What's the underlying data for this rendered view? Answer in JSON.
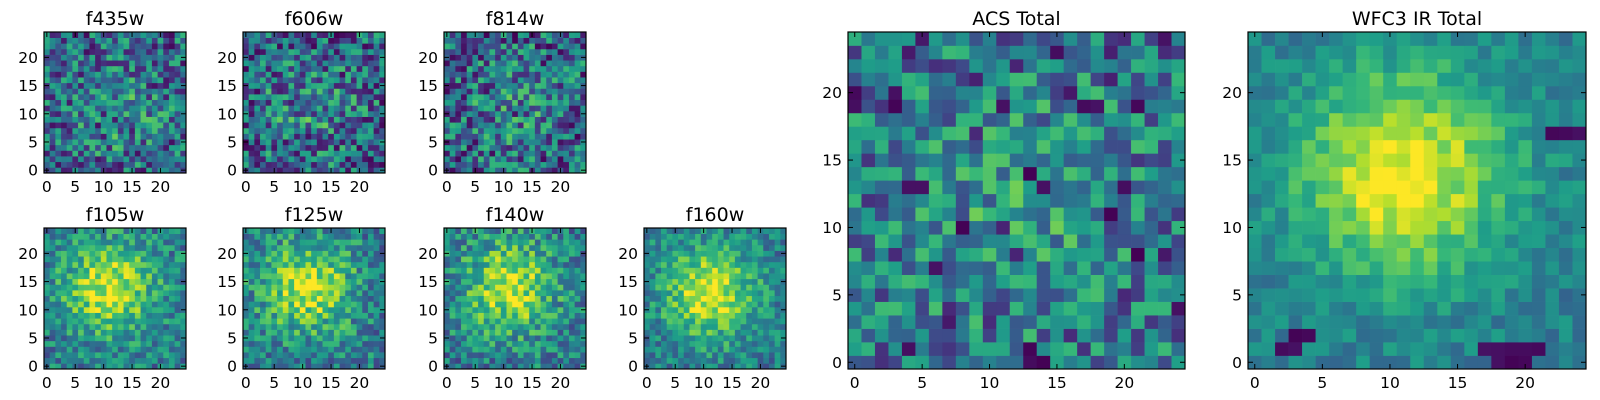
{
  "chart_data": [
    {
      "id": "f435w",
      "type": "heatmap",
      "title": "f435w",
      "grid_size": 25,
      "xticks": [
        0,
        5,
        10,
        15,
        20
      ],
      "yticks": [
        0,
        5,
        10,
        15,
        20
      ],
      "colormap": "viridis",
      "pattern": "noise",
      "seed": 11,
      "center": [
        13,
        10
      ],
      "peak": 0.62,
      "noise": 0.32,
      "dark_pixels": []
    },
    {
      "id": "f606w",
      "type": "heatmap",
      "title": "f606w",
      "grid_size": 25,
      "xticks": [
        0,
        5,
        10,
        15,
        20
      ],
      "yticks": [
        0,
        5,
        10,
        15,
        20
      ],
      "colormap": "viridis",
      "pattern": "noise",
      "seed": 23,
      "center": [
        11,
        11
      ],
      "peak": 0.6,
      "noise": 0.34,
      "dark_pixels": []
    },
    {
      "id": "f814w",
      "type": "heatmap",
      "title": "f814w",
      "grid_size": 25,
      "xticks": [
        0,
        5,
        10,
        15,
        20
      ],
      "yticks": [
        0,
        5,
        10,
        15,
        20
      ],
      "colormap": "viridis",
      "pattern": "noise",
      "seed": 37,
      "center": [
        12,
        12
      ],
      "peak": 0.6,
      "noise": 0.34,
      "dark_pixels": []
    },
    {
      "id": "f105w",
      "type": "heatmap",
      "title": "f105w",
      "grid_size": 25,
      "xticks": [
        0,
        5,
        10,
        15,
        20
      ],
      "yticks": [
        0,
        5,
        10,
        15,
        20
      ],
      "colormap": "viridis",
      "pattern": "blob",
      "seed": 41,
      "center": [
        11,
        14
      ],
      "peak": 0.95,
      "noise": 0.22,
      "dark_pixels": []
    },
    {
      "id": "f125w",
      "type": "heatmap",
      "title": "f125w",
      "grid_size": 25,
      "xticks": [
        0,
        5,
        10,
        15,
        20
      ],
      "yticks": [
        0,
        5,
        10,
        15,
        20
      ],
      "colormap": "viridis",
      "pattern": "blob",
      "seed": 53,
      "center": [
        11,
        14
      ],
      "peak": 0.92,
      "noise": 0.24,
      "dark_pixels": []
    },
    {
      "id": "f140w",
      "type": "heatmap",
      "title": "f140w",
      "grid_size": 25,
      "xticks": [
        0,
        5,
        10,
        15,
        20
      ],
      "yticks": [
        0,
        5,
        10,
        15,
        20
      ],
      "colormap": "viridis",
      "pattern": "blob",
      "seed": 67,
      "center": [
        11,
        14
      ],
      "peak": 0.92,
      "noise": 0.24,
      "dark_pixels": []
    },
    {
      "id": "f160w",
      "type": "heatmap",
      "title": "f160w",
      "grid_size": 25,
      "xticks": [
        0,
        5,
        10,
        15,
        20
      ],
      "yticks": [
        0,
        5,
        10,
        15,
        20
      ],
      "colormap": "viridis",
      "pattern": "blob",
      "seed": 79,
      "center": [
        11,
        13
      ],
      "peak": 0.96,
      "noise": 0.2,
      "dark_pixels": []
    },
    {
      "id": "acs",
      "type": "heatmap",
      "title": "ACS Total",
      "grid_size": 25,
      "xticks": [
        0,
        5,
        10,
        15,
        20
      ],
      "yticks": [
        0,
        5,
        10,
        15,
        20
      ],
      "colormap": "viridis",
      "pattern": "noise",
      "seed": 97,
      "center": [
        12,
        12
      ],
      "peak": 0.72,
      "noise": 0.28,
      "dark_pixels": [
        [
          0,
          20
        ],
        [
          23,
          24
        ],
        [
          3,
          19
        ],
        [
          14,
          13
        ],
        [
          20,
          13
        ],
        [
          18,
          19
        ],
        [
          17,
          19
        ],
        [
          13,
          14
        ],
        [
          8,
          10
        ],
        [
          6,
          7
        ],
        [
          21,
          8
        ],
        [
          13,
          1
        ],
        [
          14,
          0
        ],
        [
          4,
          13
        ],
        [
          5,
          13
        ],
        [
          21,
          19
        ],
        [
          11,
          19
        ],
        [
          19,
          11
        ]
      ]
    },
    {
      "id": "wfc3",
      "type": "heatmap",
      "title": "WFC3 IR Total",
      "grid_size": 25,
      "xticks": [
        0,
        5,
        10,
        15,
        20
      ],
      "yticks": [
        0,
        5,
        10,
        15,
        20
      ],
      "colormap": "viridis",
      "pattern": "blob",
      "seed": 113,
      "center": [
        11,
        14
      ],
      "peak": 1.0,
      "noise": 0.12,
      "dark_pixels": [
        [
          3,
          2
        ],
        [
          4,
          2
        ],
        [
          2,
          1
        ],
        [
          3,
          1
        ],
        [
          17,
          1
        ],
        [
          18,
          1
        ],
        [
          19,
          1
        ],
        [
          20,
          1
        ],
        [
          21,
          1
        ],
        [
          18,
          0
        ],
        [
          19,
          0
        ],
        [
          20,
          0
        ],
        [
          22,
          17
        ],
        [
          23,
          17
        ],
        [
          24,
          17
        ]
      ]
    }
  ]
}
